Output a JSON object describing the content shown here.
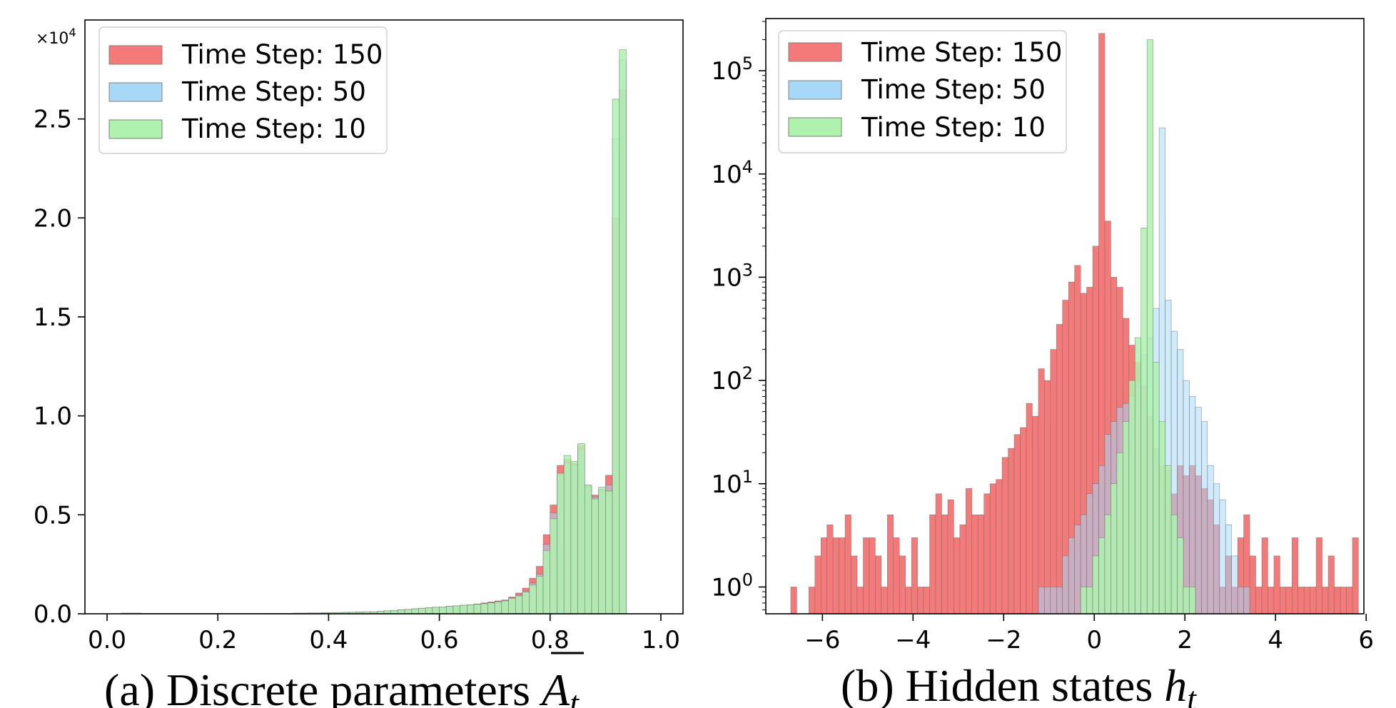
{
  "colors": {
    "series_150": "#f47a7a",
    "series_50": "#a8d8f8",
    "series_10": "#aef2ae",
    "overlap_50_150": "#aeb2cc"
  },
  "panels": [
    {
      "caption_prefix": "(a) Discrete parameters ",
      "caption_symbol": "A",
      "caption_sub": "t"
    },
    {
      "caption_prefix": "(b) Hidden states ",
      "caption_symbol": "h",
      "caption_sub": "t"
    }
  ],
  "chart_data": [
    {
      "type": "bar",
      "subtype": "overlaid-histogram",
      "title": "",
      "xlabel": "",
      "ylabel": "",
      "y_multiplier_label": "×10",
      "y_multiplier_exp": "4",
      "xlim": [
        -0.04,
        1.04
      ],
      "ylim": [
        0,
        30000
      ],
      "xticks": [
        0.0,
        0.2,
        0.4,
        0.6,
        0.8,
        1.0
      ],
      "xtick_labels": [
        "0.0",
        "0.2",
        "0.4",
        "0.6",
        "0.8",
        "1.0"
      ],
      "yticks": [
        0,
        5000,
        10000,
        15000,
        20000,
        25000
      ],
      "ytick_labels": [
        "0.0",
        "0.5",
        "1.0",
        "1.5",
        "2.0",
        "2.5"
      ],
      "grid": false,
      "legend_position": "top-left",
      "bin_start": 0.0,
      "bin_width": 0.0125,
      "series": [
        {
          "name": "Time Step: 150",
          "values": [
            0,
            0,
            30,
            30,
            30,
            20,
            20,
            20,
            20,
            20,
            20,
            20,
            20,
            20,
            20,
            20,
            20,
            15,
            15,
            15,
            15,
            15,
            15,
            20,
            20,
            20,
            20,
            30,
            30,
            40,
            40,
            50,
            60,
            60,
            70,
            80,
            90,
            100,
            100,
            120,
            150,
            170,
            200,
            220,
            250,
            280,
            300,
            330,
            350,
            380,
            400,
            430,
            450,
            500,
            550,
            600,
            650,
            700,
            850,
            1050,
            1300,
            1800,
            2400,
            4000,
            5500,
            7500,
            7800,
            7600,
            8500,
            6500,
            6000,
            6300,
            7000,
            20000,
            26500
          ]
        },
        {
          "name": "Time Step: 50",
          "values": [
            0,
            0,
            30,
            30,
            30,
            20,
            20,
            20,
            20,
            20,
            20,
            20,
            20,
            20,
            20,
            20,
            20,
            15,
            15,
            15,
            15,
            15,
            15,
            20,
            20,
            20,
            20,
            30,
            30,
            40,
            40,
            50,
            60,
            60,
            70,
            80,
            90,
            100,
            100,
            120,
            150,
            170,
            200,
            220,
            250,
            280,
            300,
            330,
            350,
            380,
            400,
            430,
            450,
            480,
            520,
            560,
            620,
            680,
            800,
            950,
            1150,
            1550,
            2000,
            3500,
            5100,
            7000,
            7600,
            7500,
            8300,
            6400,
            5900,
            6200,
            6500,
            24000,
            28000
          ]
        },
        {
          "name": "Time Step: 10",
          "values": [
            0,
            0,
            30,
            30,
            30,
            20,
            20,
            20,
            20,
            20,
            20,
            20,
            20,
            20,
            20,
            20,
            20,
            15,
            15,
            15,
            15,
            15,
            15,
            20,
            20,
            20,
            20,
            30,
            30,
            40,
            40,
            50,
            60,
            60,
            70,
            80,
            90,
            100,
            100,
            120,
            150,
            170,
            200,
            220,
            250,
            280,
            300,
            330,
            350,
            380,
            400,
            430,
            450,
            480,
            510,
            550,
            600,
            650,
            780,
            900,
            1100,
            1450,
            1900,
            3200,
            4800,
            7100,
            8000,
            7700,
            8600,
            6500,
            5800,
            6400,
            6200,
            26000,
            28500
          ]
        }
      ]
    },
    {
      "type": "bar",
      "subtype": "overlaid-histogram",
      "title": "",
      "xlabel": "",
      "ylabel": "",
      "yscale": "log",
      "xlim": [
        -7.25,
        5.95
      ],
      "ylim": [
        0.55,
        320000
      ],
      "xticks": [
        -6,
        -4,
        -2,
        0,
        2,
        4,
        6
      ],
      "xtick_labels": [
        "−6",
        "−4",
        "−2",
        "0",
        "2",
        "4",
        "6"
      ],
      "yticks": [
        1,
        10,
        100,
        1000,
        10000,
        100000
      ],
      "ytick_base": "10",
      "ytick_exponents": [
        "0",
        "1",
        "2",
        "3",
        "4",
        "5"
      ],
      "grid": false,
      "legend_position": "top-left",
      "bin_start": -6.7,
      "bin_width": 0.1333,
      "series": [
        {
          "name": "Time Step: 150",
          "values": [
            1,
            0,
            0,
            1,
            2,
            3,
            4,
            3,
            3,
            5,
            2,
            1,
            3,
            3,
            2,
            1,
            5,
            3,
            2,
            1,
            3,
            1,
            1,
            5,
            8,
            5,
            7,
            3,
            4,
            9,
            5,
            5,
            8,
            10,
            11,
            18,
            22,
            30,
            35,
            60,
            45,
            130,
            100,
            200,
            350,
            600,
            900,
            1300,
            700,
            800,
            2000,
            230000,
            3500,
            1000,
            800,
            400,
            220,
            150,
            90,
            45,
            22,
            15,
            14,
            8,
            15,
            12,
            15,
            12,
            9,
            7,
            4,
            1,
            2,
            1,
            3,
            5,
            2,
            1,
            3,
            1,
            2,
            1,
            1,
            3,
            1,
            1,
            1,
            3,
            1,
            2,
            1,
            1,
            1,
            3
          ]
        },
        {
          "name": "Time Step: 50",
          "values": [
            0,
            0,
            0,
            0,
            0,
            0,
            0,
            0,
            0,
            0,
            0,
            0,
            0,
            0,
            0,
            0,
            0,
            0,
            0,
            0,
            0,
            0,
            0,
            0,
            0,
            0,
            0,
            0,
            0,
            0,
            0,
            0,
            0,
            0,
            0,
            0,
            0,
            0,
            0,
            0,
            0,
            1,
            1,
            1,
            1,
            2,
            3,
            4,
            5,
            8,
            10,
            15,
            30,
            40,
            55,
            60,
            70,
            100,
            180,
            260,
            500,
            28000,
            600,
            300,
            200,
            100,
            70,
            55,
            40,
            15,
            10,
            7,
            4,
            2,
            1,
            1,
            0,
            0,
            0,
            0,
            0,
            0,
            0,
            0,
            0,
            0,
            0,
            0,
            0,
            0,
            0,
            0,
            0,
            0
          ]
        },
        {
          "name": "Time Step: 10",
          "values": [
            0,
            0,
            0,
            0,
            0,
            0,
            0,
            0,
            0,
            0,
            0,
            0,
            0,
            0,
            0,
            0,
            0,
            0,
            0,
            0,
            0,
            0,
            0,
            0,
            0,
            0,
            0,
            0,
            0,
            0,
            0,
            0,
            0,
            0,
            0,
            0,
            0,
            0,
            0,
            0,
            0,
            0,
            0,
            0,
            0,
            0,
            0,
            0,
            1,
            1,
            2,
            3,
            5,
            10,
            20,
            40,
            100,
            260,
            3000,
            200000,
            150,
            40,
            15,
            5,
            3,
            1,
            1,
            0,
            0,
            0,
            0,
            0,
            0,
            0,
            0,
            0,
            0,
            0,
            0,
            0,
            0,
            0,
            0,
            0,
            0,
            0,
            0,
            0,
            0,
            0,
            0,
            0,
            0,
            0
          ]
        }
      ]
    }
  ]
}
